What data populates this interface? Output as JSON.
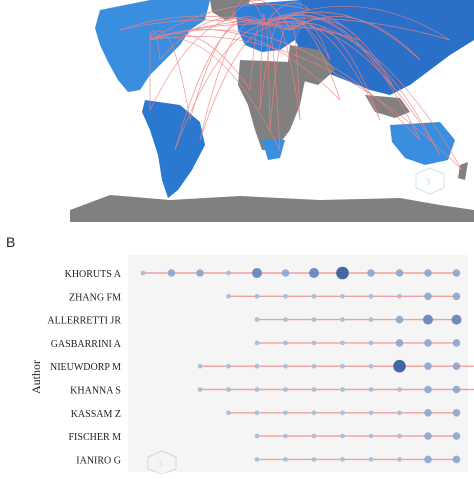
{
  "panel_b_label": "B",
  "map": {
    "ocean_color": "#ffffff",
    "land_gray": "#808080",
    "country_blue_light": "#3a8ee0",
    "country_blue_dark": "#1f5fb8",
    "link_color": "#f07f7f",
    "watermark_icon": "logo-icon"
  },
  "chart_data": {
    "type": "scatter",
    "title": "",
    "xlabel": "",
    "ylabel": "Author",
    "grid": false,
    "categories": [
      "KHORUTS A",
      "ZHANG FM",
      "ALLERRETTI JR",
      "GASBARRINI A",
      "NIEUWDORP M",
      "KHANNA S",
      "KASSAM Z",
      "FISCHER M",
      "IANIRO G"
    ],
    "time_slots": 12,
    "series": [
      {
        "author": "KHORUTS A",
        "start": 0,
        "values": [
          1,
          2,
          2,
          1,
          3,
          2,
          3,
          4,
          2,
          2,
          2,
          2
        ]
      },
      {
        "author": "ZHANG FM",
        "start": 3,
        "values": [
          1,
          1,
          1,
          1,
          1,
          1,
          1,
          2,
          2
        ]
      },
      {
        "author": "ALLERRETTI JR",
        "start": 4,
        "values": [
          1,
          1,
          1,
          1,
          1,
          2,
          3,
          3
        ]
      },
      {
        "author": "GASBARRINI A",
        "start": 4,
        "values": [
          1,
          1,
          1,
          1,
          1,
          2,
          2,
          2
        ]
      },
      {
        "author": "NIEUWDORP M",
        "start": 2,
        "values": [
          1,
          1,
          1,
          1,
          1,
          1,
          1,
          4,
          2,
          2,
          2
        ]
      },
      {
        "author": "KHANNA S",
        "start": 2,
        "values": [
          1,
          1,
          1,
          1,
          1,
          1,
          1,
          1,
          2,
          2,
          3
        ]
      },
      {
        "author": "KASSAM Z",
        "start": 3,
        "values": [
          1,
          1,
          1,
          1,
          1,
          1,
          1,
          2,
          2
        ]
      },
      {
        "author": "FISCHER M",
        "start": 4,
        "values": [
          1,
          1,
          1,
          1,
          1,
          1,
          2,
          2
        ]
      },
      {
        "author": "IANIRO G",
        "start": 4,
        "values": [
          1,
          1,
          1,
          1,
          1,
          1,
          2,
          2
        ]
      }
    ],
    "value_scale": "relative size/intensity 1-4 (no printed axis)"
  }
}
